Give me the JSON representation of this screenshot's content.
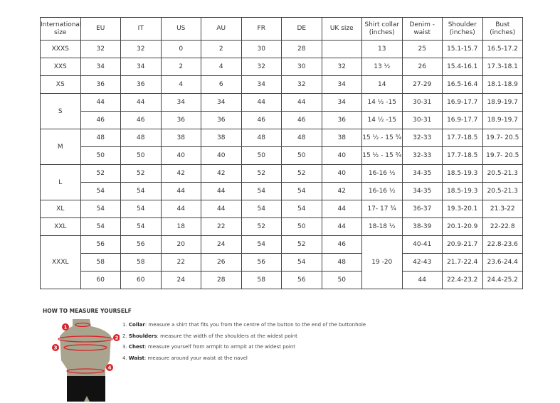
{
  "headers": [
    "International size",
    "EU",
    "IT",
    "US",
    "AU",
    "FR",
    "DE",
    "UK size",
    "Shirt collar (inches)",
    "Denim - waist",
    "Shoulder (inches)",
    "Bust (inches)"
  ],
  "groups": [
    {
      "size": "XXXS",
      "rows": [
        [
          "32",
          "32",
          "0",
          "2",
          "30",
          "28",
          "",
          "13",
          "25",
          "15.1-15.7",
          "16.5-17.2"
        ]
      ]
    },
    {
      "size": "XXS",
      "rows": [
        [
          "34",
          "34",
          "2",
          "4",
          "32",
          "30",
          "32",
          "13 ½",
          "26",
          "15.4-16.1",
          "17.3-18.1"
        ]
      ]
    },
    {
      "size": "XS",
      "rows": [
        [
          "36",
          "36",
          "4",
          "6",
          "34",
          "32",
          "34",
          "14",
          "27-29",
          "16.5-16.4",
          "18.1-18.9"
        ]
      ]
    },
    {
      "size": "S",
      "rows": [
        [
          "44",
          "44",
          "34",
          "34",
          "44",
          "44",
          "34",
          "14 ½ -15",
          "30-31",
          "16.9-17.7",
          "18.9-19.7"
        ],
        [
          "46",
          "46",
          "36",
          "36",
          "46",
          "46",
          "36",
          "14 ½ -15",
          "30-31",
          "16.9-17.7",
          "18.9-19.7"
        ]
      ]
    },
    {
      "size": "M",
      "rows": [
        [
          "48",
          "48",
          "38",
          "38",
          "48",
          "48",
          "38",
          "15 ½ - 15 ¾",
          "32-33",
          "17.7-18.5",
          "19.7- 20.5"
        ],
        [
          "50",
          "50",
          "40",
          "40",
          "50",
          "50",
          "40",
          "15 ½ - 15 ¾",
          "32-33",
          "17.7-18.5",
          "19.7- 20.5"
        ]
      ]
    },
    {
      "size": "L",
      "rows": [
        [
          "52",
          "52",
          "42",
          "42",
          "52",
          "52",
          "40",
          "16-16 ½",
          "34-35",
          "18.5-19.3",
          "20.5-21.3"
        ],
        [
          "54",
          "54",
          "44",
          "44",
          "54",
          "54",
          "42",
          "16-16 ½",
          "34-35",
          "18.5-19.3",
          "20.5-21.3"
        ]
      ]
    },
    {
      "size": "XL",
      "rows": [
        [
          "54",
          "54",
          "44",
          "44",
          "54",
          "54",
          "44",
          "17- 17 ¾",
          "36-37",
          "19.3-20.1",
          "21.3-22"
        ]
      ]
    },
    {
      "size": "XXL",
      "rows": [
        [
          "54",
          "54",
          "18",
          "22",
          "52",
          "50",
          "44",
          "18-18 ½",
          "38-39",
          "20.1-20.9",
          "22-22.8"
        ]
      ]
    },
    {
      "size": "XXXL",
      "rows": [
        [
          "56",
          "56",
          "20",
          "24",
          "54",
          "52",
          "46",
          "19 -20",
          "40-41",
          "20.9-21.7",
          "22.8-23.6"
        ],
        [
          "58",
          "58",
          "22",
          "26",
          "56",
          "54",
          "48",
          null,
          "42-43",
          "21.7-22.4",
          "23.6-24.4"
        ],
        [
          "60",
          "60",
          "24",
          "28",
          "58",
          "56",
          "50",
          null,
          "44",
          "22.4-23.2",
          "24.4-25.2"
        ]
      ]
    }
  ],
  "howto": {
    "title": "HOW TO MEASURE YOURSELF",
    "steps": [
      {
        "num": "1.",
        "term": "Collar",
        "text": ": measure a shirt that fits you from the centre of the button to the end of the buttonhole"
      },
      {
        "num": "2.",
        "term": "Shoulders",
        "text": ": measure the width of the shoulders at the widest point"
      },
      {
        "num": "3.",
        "term": "Chest",
        "text": ": measure yourself from armpit to armpit at the widest point"
      },
      {
        "num": "4.",
        "term": "Waist",
        "text": ": measure around your waist at the navel"
      }
    ],
    "markers": [
      "1",
      "2",
      "3",
      "4"
    ],
    "colors": {
      "marker": "#d9222a",
      "torso": "#a8a48e",
      "pants": "#111111"
    }
  }
}
